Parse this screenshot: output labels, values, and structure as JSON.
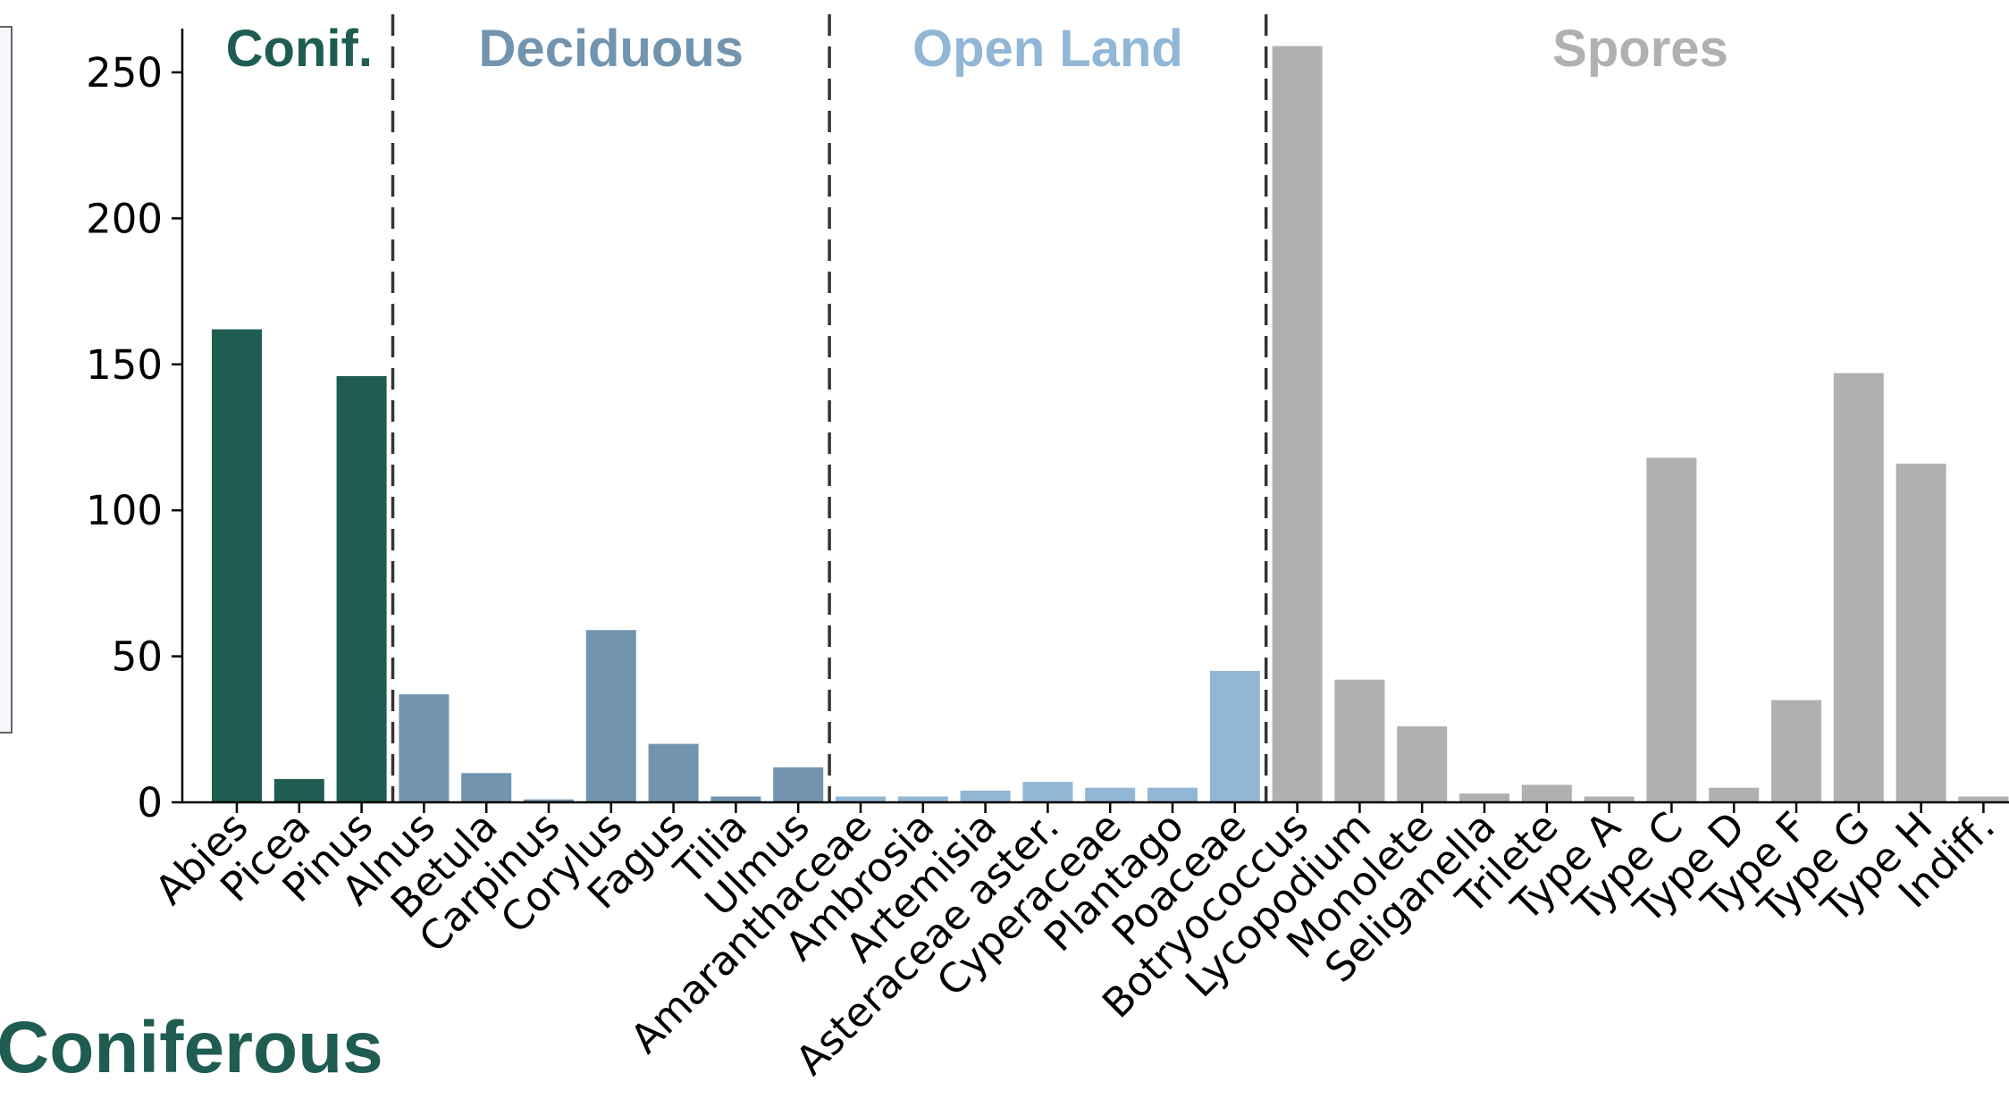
{
  "chart_data": {
    "type": "bar",
    "title": "",
    "xlabel": "",
    "ylabel": "",
    "ylim": [
      0,
      265
    ],
    "yticks": [
      0,
      50,
      100,
      150,
      200,
      250
    ],
    "grid": false,
    "legend": "none",
    "categories": [
      "Abies",
      "Picea",
      "Pinus",
      "Alnus",
      "Betula",
      "Carpinus",
      "Corylus",
      "Fagus",
      "Tilia",
      "Ulmus",
      "Amaranthaceae",
      "Ambrosia",
      "Artemisia",
      "Asteraceae aster.",
      "Cyperaceae",
      "Plantago",
      "Poaceae",
      "Botryococcus",
      "Lycopodium",
      "Monolete",
      "Seliganella",
      "Trilete",
      "Type A",
      "Type C",
      "Type D",
      "Type F",
      "Type G",
      "Type H",
      "Indiff."
    ],
    "values": [
      162,
      8,
      146,
      37,
      10,
      1,
      59,
      20,
      2,
      12,
      2,
      2,
      4,
      7,
      5,
      5,
      45,
      259,
      42,
      26,
      3,
      6,
      2,
      118,
      5,
      35,
      147,
      116,
      2
    ],
    "groups": [
      {
        "name": "Conif.",
        "start": 0,
        "end": 2,
        "color": "#1f5c52"
      },
      {
        "name": "Deciduous",
        "start": 3,
        "end": 9,
        "color": "#7294ae"
      },
      {
        "name": "Open Land",
        "start": 10,
        "end": 16,
        "color": "#91b6d6"
      },
      {
        "name": "Spores",
        "start": 17,
        "end": 28,
        "color": "#b0b0b0"
      }
    ],
    "group_label_colors": {
      "Conif.": "#1f5c52",
      "Deciduous": "#7294ae",
      "Open Land": "#91b6d6",
      "Spores": "#b0b0b0"
    },
    "separator_style": "dashed",
    "annotation": {
      "text": "Coniferous",
      "color": "#1f5c52"
    }
  }
}
